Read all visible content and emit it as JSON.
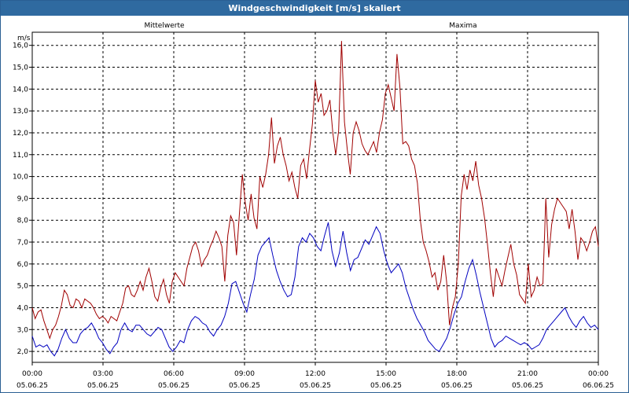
{
  "window": {
    "title": "Windgeschwindigkeit [m/s] skaliert"
  },
  "colors": {
    "mean": "#0000c0",
    "max": "#a00000",
    "grid": "#000000",
    "title_bg": "#2f6aa0"
  },
  "chart_data": {
    "type": "line",
    "ylabel": "m/s",
    "ylim": [
      1.5,
      16.6
    ],
    "yticks": [
      "2,0",
      "3,0",
      "4,0",
      "5,0",
      "6,0",
      "7,0",
      "8,0",
      "9,0",
      "10,0",
      "11,0",
      "12,0",
      "13,0",
      "14,0",
      "15,0",
      "16,0"
    ],
    "xlim": [
      0,
      24
    ],
    "xticks": [
      {
        "time": "00:00",
        "date": "05.06.25"
      },
      {
        "time": "03:00",
        "date": "05.06.25"
      },
      {
        "time": "06:00",
        "date": "05.06.25"
      },
      {
        "time": "09:00",
        "date": "05.06.25"
      },
      {
        "time": "12:00",
        "date": "05.06.25"
      },
      {
        "time": "15:00",
        "date": "05.06.25"
      },
      {
        "time": "18:00",
        "date": "05.06.25"
      },
      {
        "time": "21:00",
        "date": "05.06.25"
      },
      {
        "time": "00:00",
        "date": "06.06.25"
      }
    ],
    "grid": true,
    "legend_position": "top",
    "series": [
      {
        "name": "Mittelwerte",
        "values": [
          2.7,
          2.2,
          2.3,
          2.2,
          2.3,
          2.0,
          1.8,
          2.1,
          2.6,
          3.0,
          2.6,
          2.4,
          2.4,
          2.8,
          3.0,
          3.1,
          3.3,
          3.0,
          2.6,
          2.4,
          2.1,
          1.9,
          2.2,
          2.4,
          3.0,
          3.3,
          3.0,
          2.9,
          3.2,
          3.2,
          3.0,
          2.8,
          2.7,
          2.9,
          3.1,
          3.0,
          2.6,
          2.2,
          2.0,
          2.2,
          2.5,
          2.4,
          3.0,
          3.4,
          3.6,
          3.5,
          3.3,
          3.2,
          2.9,
          2.7,
          3.0,
          3.2,
          3.6,
          4.2,
          5.1,
          5.2,
          4.7,
          4.2,
          3.8,
          4.6,
          5.3,
          6.4,
          6.8,
          7.0,
          7.2,
          6.4,
          5.7,
          5.2,
          4.8,
          4.5,
          4.6,
          5.4,
          6.8,
          7.2,
          7.0,
          7.4,
          7.2,
          6.8,
          6.6,
          7.3,
          7.9,
          6.6,
          5.9,
          6.5,
          7.5,
          6.5,
          5.7,
          6.2,
          6.3,
          6.7,
          7.1,
          6.9,
          7.3,
          7.7,
          7.4,
          6.6,
          6.0,
          5.6,
          5.8,
          6.0,
          5.6,
          4.9,
          4.4,
          3.9,
          3.5,
          3.2,
          2.9,
          2.5,
          2.3,
          2.1,
          2.0,
          2.3,
          2.6,
          3.1,
          3.7,
          4.2,
          4.5,
          5.2,
          5.8,
          6.2,
          5.5,
          4.7,
          4.0,
          3.3,
          2.6,
          2.2,
          2.4,
          2.5,
          2.7,
          2.6,
          2.5,
          2.4,
          2.3,
          2.4,
          2.3,
          2.1,
          2.2,
          2.3,
          2.6,
          3.0,
          3.2,
          3.4,
          3.6,
          3.8,
          4.0,
          3.6,
          3.3,
          3.1,
          3.4,
          3.6,
          3.3,
          3.1,
          3.2,
          3.0
        ]
      },
      {
        "name": "Maxima",
        "values": [
          4.0,
          3.5,
          3.8,
          3.9,
          3.4,
          3.0,
          2.6,
          3.0,
          3.2,
          3.6,
          4.1,
          4.8,
          4.6,
          4.1,
          4.0,
          4.4,
          4.3,
          4.0,
          4.4,
          4.3,
          4.2,
          4.0,
          3.7,
          3.5,
          3.6,
          3.5,
          3.3,
          3.6,
          3.5,
          3.4,
          3.8,
          4.2,
          4.9,
          5.0,
          4.6,
          4.5,
          4.8,
          5.2,
          4.8,
          5.4,
          5.8,
          5.2,
          4.5,
          4.3,
          4.9,
          5.3,
          4.6,
          4.2,
          5.2,
          5.6,
          5.4,
          5.2,
          5.0,
          5.8,
          6.3,
          6.8,
          7.0,
          6.6,
          5.9,
          6.2,
          6.4,
          6.8,
          7.1,
          7.5,
          7.2,
          6.8,
          5.2,
          7.3,
          8.2,
          7.9,
          6.4,
          8.3,
          10.1,
          8.8,
          8.0,
          9.2,
          8.1,
          7.6,
          10.0,
          9.5,
          10.1,
          11.0,
          12.7,
          10.6,
          11.4,
          11.8,
          11.0,
          10.5,
          9.8,
          10.2,
          9.5,
          9.0,
          10.5,
          10.8,
          9.9,
          11.2,
          12.4,
          14.4,
          13.4,
          13.8,
          12.8,
          13.0,
          13.5,
          12.0,
          11.0,
          12.1,
          16.2,
          12.5,
          11.2,
          10.1,
          12.0,
          12.5,
          12.1,
          11.5,
          11.2,
          11.0,
          11.3,
          11.6,
          11.1,
          12.0,
          12.6,
          13.8,
          14.2,
          13.6,
          13.0,
          15.6,
          14.1,
          11.5,
          11.6,
          11.4,
          10.8,
          10.5,
          9.7,
          8.0,
          7.0,
          6.6,
          6.1,
          5.4,
          5.6,
          4.8,
          5.2,
          6.4,
          5.2,
          3.2,
          4.0,
          4.5,
          6.0,
          9.1,
          10.1,
          9.4,
          10.3,
          9.8,
          10.7,
          9.6,
          9.0,
          8.1,
          6.9,
          5.6,
          4.5,
          5.8,
          5.4,
          5.0,
          5.7,
          6.3,
          6.9,
          6.0,
          5.5,
          4.6,
          4.4,
          4.2,
          6.0,
          4.5,
          4.8,
          5.4,
          5.0,
          5.1,
          9.0,
          6.3,
          7.8,
          8.5,
          9.0,
          8.8,
          8.6,
          8.4,
          7.6,
          8.5,
          7.5,
          6.2,
          7.2,
          7.0,
          6.6,
          7.0,
          7.5,
          7.7,
          6.8
        ]
      }
    ]
  }
}
